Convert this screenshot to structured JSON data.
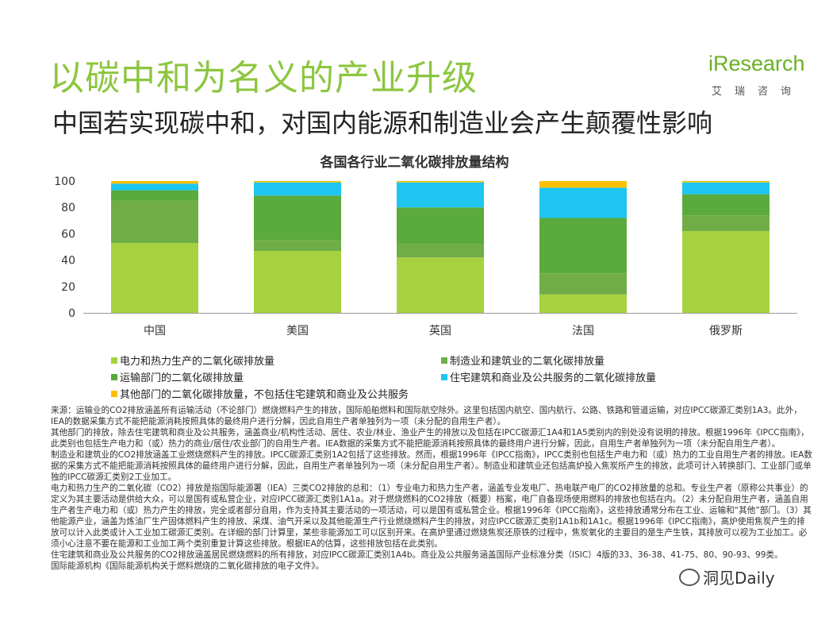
{
  "header": {
    "title": "以碳中和为名义的产业升级",
    "subtitle": "中国若实现碳中和，对国内能源和制造业会产生颠覆性影响"
  },
  "logo": {
    "word": "iResearch",
    "sub": "艾瑞咨询"
  },
  "colors": {
    "series": [
      "#a6d23f",
      "#70ad47",
      "#5aaa3c",
      "#1ec5f0",
      "#ffc000"
    ]
  },
  "chart_data": {
    "type": "bar",
    "stacked": true,
    "title": "各国各行业二氧化碳排放量结构",
    "categories": [
      "中国",
      "美国",
      "英国",
      "法国",
      "俄罗斯"
    ],
    "ylim": [
      0,
      100
    ],
    "yticks": [
      0,
      20,
      40,
      60,
      80,
      100
    ],
    "grid": false,
    "series": [
      {
        "name": "电力和热力生产的二氧化碳排放量",
        "values": [
          53,
          47,
          42,
          14,
          62
        ]
      },
      {
        "name": "制造业和建筑业的二氧化碳排放量",
        "values": [
          32,
          8,
          10,
          16,
          12
        ]
      },
      {
        "name": "运输部门的二氧化碳排放量",
        "values": [
          8,
          34,
          28,
          42,
          16
        ]
      },
      {
        "name": "住宅建筑和商业及公共服务的二氧化碳排放量",
        "values": [
          5,
          10,
          19,
          23,
          9
        ]
      },
      {
        "name": "其他部门的二氧化碳排放量，不包括住宅建筑和商业及公共服务",
        "values": [
          2,
          1,
          1,
          5,
          1
        ]
      }
    ]
  },
  "notes": [
    "来源：运输业的CO2排放涵盖所有运输活动（不论部门）燃烧燃料产生的排放，国际船舶燃料和国际航空除外。这里包括国内航空、国内航行、公路、铁路和管道运输，对应IPCC碳源汇类别1A3。此外，IEA的数据采集方式不能把能源消耗按照具体的最终用户进行分解，因此自用生产者单独列为一项（未分配的自用生产者）。",
    "其他部门的排放，除去住宅建筑和商业及公共服务，涵盖商业/机构性活动、居住、农业/林业、渔业产生的排放以及包括在IPCC碳源汇1A4和1A5类别内的别处没有说明的排放。根据1996年《IPCC指南》，此类别也包括生产电力和（或）热力的商业/居住/农业部门的自用生产者。IEA数据的采集方式不能把能源消耗按照具体的最终用户进行分解，因此，自用生产者单独列为一项（未分配自用生产者）。",
    "制造业和建筑业的CO2排放涵盖工业燃烧燃料产生的排放。IPCC碳源汇类别1A2包括了这些排放。然而，根据1996年《IPCC指南》，IPCC类别也包括生产电力和（或）热力的工业自用生产者的排放。IEA数据的采集方式不能把能源消耗按照具体的最终用户进行分解，因此，自用生产者单独列为一项（未分配自用生产者）。制造业和建筑业还包括高炉投入焦炭所产生的排放，此项可计入转换部门、工业部门或单独的IPCC碳源汇类别2工业加工。",
    "电力和热力生产的二氧化碳（CO2）排放是指国际能源署（IEA）三类CO2排放的总和：（1）专业电力和热力生产者，涵盖专业发电厂、热电联产电厂的CO2排放量的总和。专业生产者（原称公共事业）的定义为其主要活动是供给大众，可以是国有或私营企业，对应IPCC碳源汇类别1A1a。对于燃烧燃料的CO2排放（概要）档案，电厂自备现场使用燃料的排放也包括在内。（2）未分配自用生产者，涵盖自用生产者生产电力和（或）热力产生的排放，完全或者部分自用，作为支持其主要活动的一项活动，可以是国有或私营企业。根据1996年《IPCC指南》，这些排放通常分布在工业、运输和“其他”部门。（3）其他能源产业，涵盖为炼油厂生产固体燃料产生的排放、采煤、油气开采以及其他能源生产行业燃烧燃料产生的排放，对应IPCC碳源汇类别1A1b和1A1c。根据1996年《IPCC指南》，高炉使用焦炭产生的排放可以计入此类或计入工业加工碳源汇类别。在详细的部门计算里，某些非能源加工可以区别开来。在高炉里通过燃烧焦炭还原铁的过程中，焦炭氧化的主要目的是生产生铁，其排放可以视为工业加工。必须小心注意不要在能源和工业加工两个类别重复计算这些排放。根据IEA的估算，这些排放包括在此类别。",
    "住宅建筑和商业及公共服务的CO2排放涵盖居民燃烧燃料的所有排放，对应IPCC碳源汇类别1A4b。商业及公共服务涵盖国际产业标准分类（ISIC）4版的33、36-38、41-75、80、90-93、99类。",
    "国际能源机构《国际能源机构关于燃料燃烧的二氧化碳排放的电子文件》。"
  ],
  "watermark": "洞见Daily"
}
